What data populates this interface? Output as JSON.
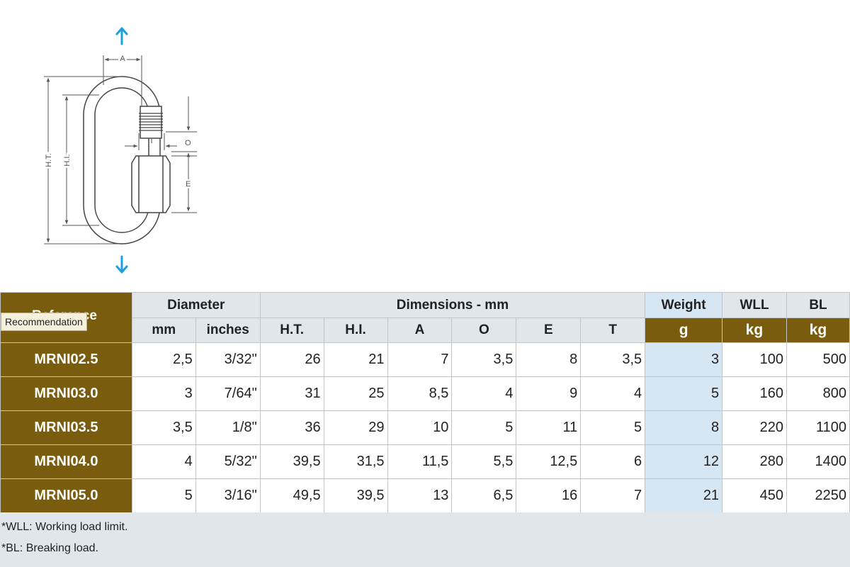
{
  "diagram": {
    "labels": {
      "a": "A",
      "ht": "H.T.",
      "hi": "H.I.",
      "t": "T",
      "o": "O",
      "e": "E"
    },
    "arrow_color": "#1aa0dc"
  },
  "table": {
    "reference_header": "Reference",
    "tooltip": "Recommendation",
    "group_headers": {
      "diameter": "Diameter",
      "dimensions": "Dimensions - mm",
      "weight": "Weight",
      "wll": "WLL",
      "bl": "BL"
    },
    "unit_headers": {
      "mm": "mm",
      "inches": "inches",
      "ht": "H.T.",
      "hi": "H.I.",
      "a": "A",
      "o": "O",
      "e": "E",
      "t": "T",
      "weight": "g",
      "wll": "kg",
      "bl": "kg"
    },
    "rows": [
      {
        "ref": "MRNI02.5",
        "mm": "2,5",
        "inches": "3/32\"",
        "ht": "26",
        "hi": "21",
        "a": "7",
        "o": "3,5",
        "e": "8",
        "t": "3,5",
        "g": "3",
        "wll": "100",
        "bl": "500"
      },
      {
        "ref": "MRNI03.0",
        "mm": "3",
        "inches": "7/64\"",
        "ht": "31",
        "hi": "25",
        "a": "8,5",
        "o": "4",
        "e": "9",
        "t": "4",
        "g": "5",
        "wll": "160",
        "bl": "800"
      },
      {
        "ref": "MRNI03.5",
        "mm": "3,5",
        "inches": "1/8\"",
        "ht": "36",
        "hi": "29",
        "a": "10",
        "o": "5",
        "e": "11",
        "t": "5",
        "g": "8",
        "wll": "220",
        "bl": "1100"
      },
      {
        "ref": "MRNI04.0",
        "mm": "4",
        "inches": "5/32\"",
        "ht": "39,5",
        "hi": "31,5",
        "a": "11,5",
        "o": "5,5",
        "e": "12,5",
        "t": "6",
        "g": "12",
        "wll": "280",
        "bl": "1400"
      },
      {
        "ref": "MRNI05.0",
        "mm": "5",
        "inches": "3/16\"",
        "ht": "49,5",
        "hi": "39,5",
        "a": "13",
        "o": "6,5",
        "e": "16",
        "t": "7",
        "g": "21",
        "wll": "450",
        "bl": "2250"
      }
    ],
    "colors": {
      "reference_bg": "#7a5c0e",
      "header_bg": "#e1e6eb",
      "weight_bg": "#d6e6f3"
    }
  },
  "footnotes": {
    "wll_abbr": "*WLL",
    "wll_text": ": Working load limit.",
    "bl_abbr": "*BL",
    "bl_text": ": Breaking load."
  }
}
